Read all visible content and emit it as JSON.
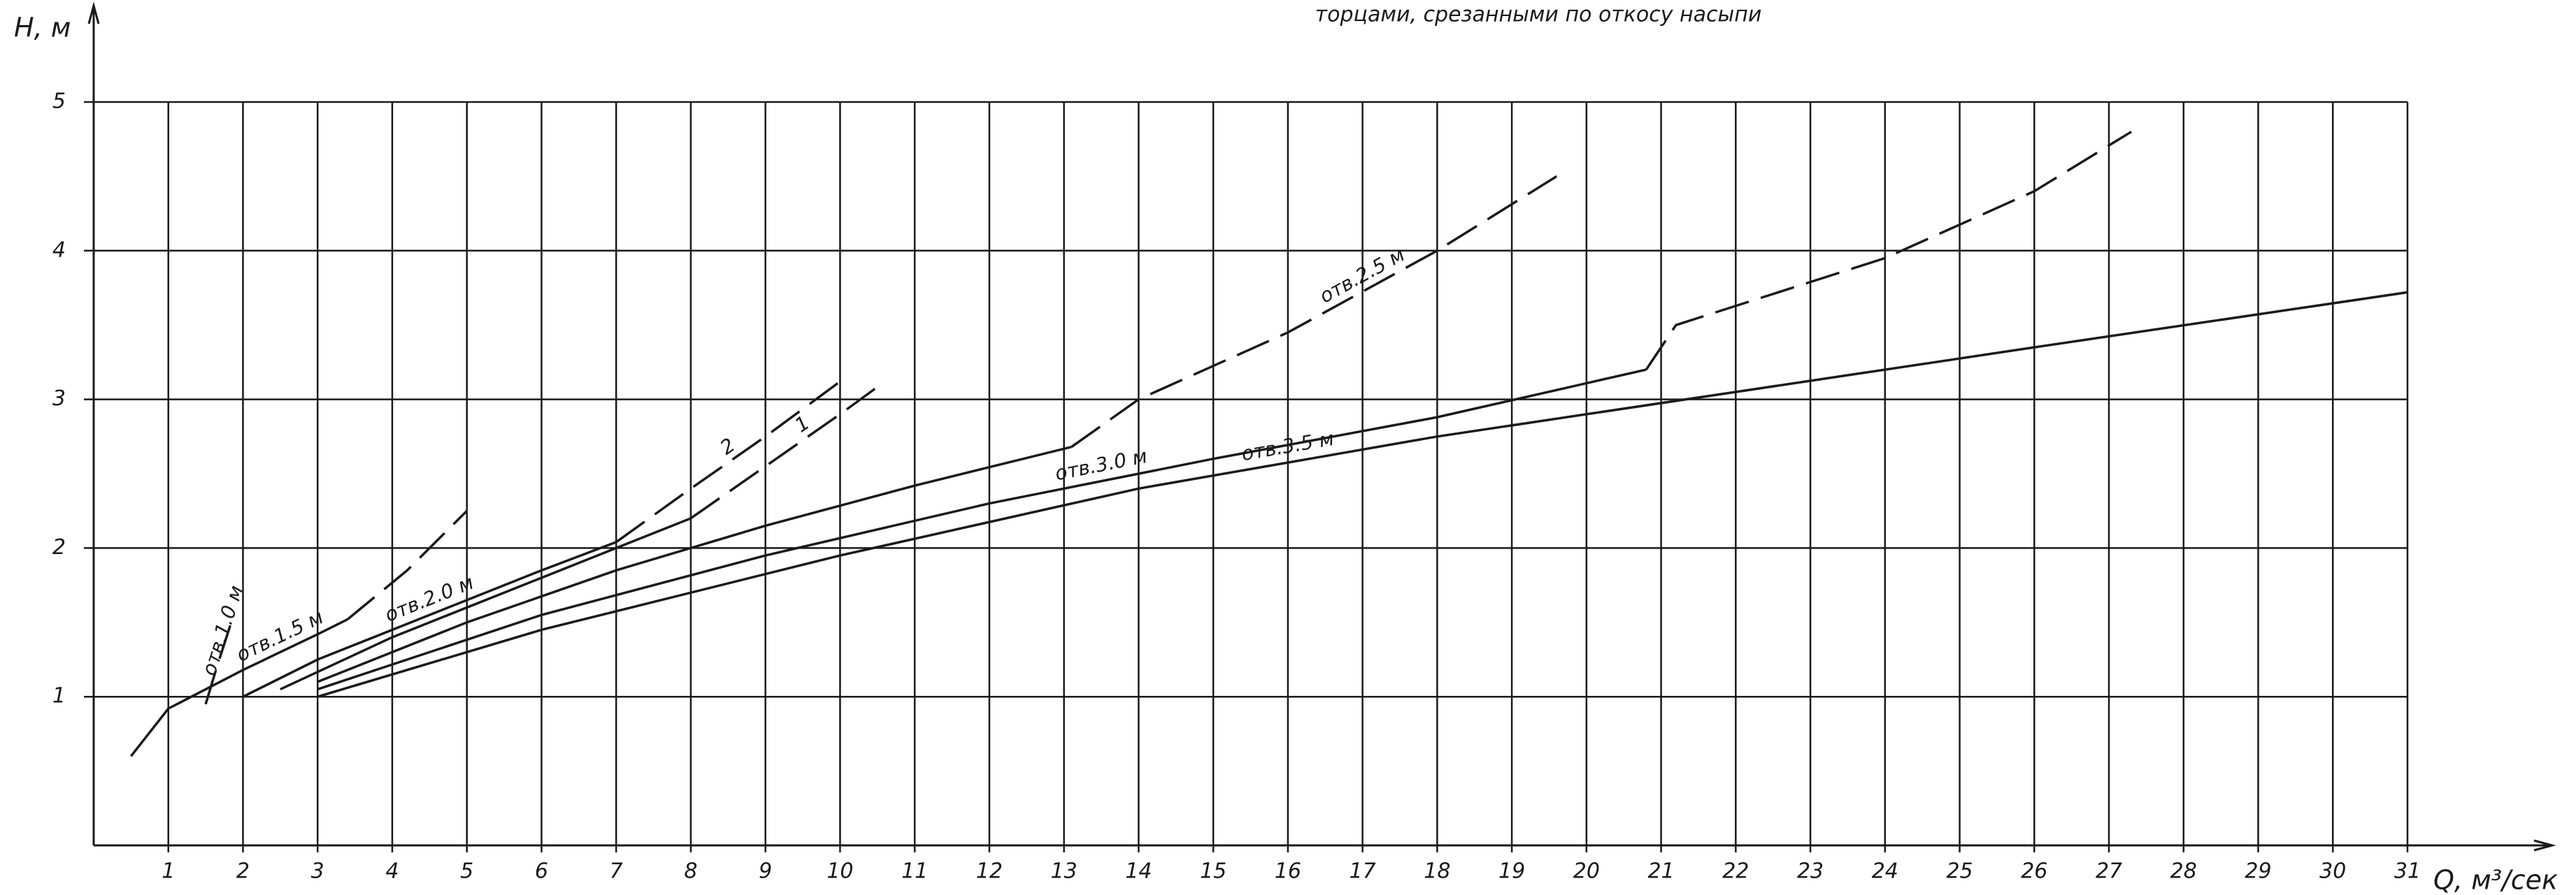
{
  "chart_data": {
    "type": "line",
    "title": "торцами, срезанными по откосу насыпи",
    "ylabel": "H, м",
    "xlabel": "Q, м³/сек",
    "xlim": [
      0,
      31
    ],
    "ylim": [
      0,
      5
    ],
    "xticks": [
      1,
      2,
      3,
      4,
      5,
      6,
      7,
      8,
      9,
      10,
      11,
      12,
      13,
      14,
      15,
      16,
      17,
      18,
      19,
      20,
      21,
      22,
      23,
      24,
      25,
      26,
      27,
      28,
      29,
      30,
      31
    ],
    "yticks": [
      1,
      2,
      3,
      4,
      5
    ],
    "grid": true,
    "color": "#1a1a1a",
    "series": [
      {
        "name": "отв.1.0 м",
        "dashed": true,
        "x": [
          1.5,
          1.65,
          1.83
        ],
        "values": [
          0.95,
          1.2,
          1.48
        ]
      },
      {
        "name": "отв.1.5 м",
        "dashed": false,
        "x": [
          0.5,
          1,
          2,
          3,
          3.4
        ],
        "values": [
          0.6,
          0.92,
          1.18,
          1.42,
          1.52
        ]
      },
      {
        "dashed": true,
        "x": [
          3.4,
          4.2,
          5.0
        ],
        "values": [
          1.52,
          1.85,
          2.25
        ]
      },
      {
        "name": "отв.2.0 м",
        "dashed": false,
        "x": [
          2,
          3,
          4,
          5,
          6,
          7
        ],
        "values": [
          1.0,
          1.25,
          1.45,
          1.65,
          1.85,
          2.04
        ]
      },
      {
        "name": "2",
        "dashed": true,
        "x": [
          7,
          8,
          9,
          10
        ],
        "values": [
          2.04,
          2.4,
          2.75,
          3.12
        ]
      },
      {
        "dashed": false,
        "x": [
          2.5,
          4,
          6,
          8
        ],
        "values": [
          1.05,
          1.4,
          1.8,
          2.2
        ]
      },
      {
        "name": "1",
        "dashed": true,
        "x": [
          8,
          9,
          10,
          10.6
        ],
        "values": [
          2.2,
          2.55,
          2.9,
          3.12
        ]
      },
      {
        "dashed": false,
        "x": [
          3,
          5,
          7,
          9,
          11,
          13.1
        ],
        "values": [
          1.1,
          1.5,
          1.85,
          2.15,
          2.42,
          2.68
        ]
      },
      {
        "name": "отв.2.5 м",
        "dashed": true,
        "x": [
          13.1,
          14,
          16,
          18,
          19.6
        ],
        "values": [
          2.68,
          3.0,
          3.45,
          4.0,
          4.5
        ]
      },
      {
        "name": "отв.3.0 м",
        "dashed": false,
        "x": [
          3,
          6,
          9,
          12,
          15,
          18,
          20.8
        ],
        "values": [
          1.05,
          1.55,
          1.95,
          2.3,
          2.6,
          2.88,
          3.2
        ]
      },
      {
        "dashed": true,
        "x": [
          20.8,
          21.2,
          24,
          26,
          27.3
        ],
        "values": [
          3.2,
          3.5,
          3.95,
          4.4,
          4.8
        ]
      },
      {
        "name": "отв.3.5 м",
        "dashed": false,
        "x": [
          3,
          6,
          10,
          14,
          18,
          22,
          26,
          31
        ],
        "values": [
          1.0,
          1.45,
          1.95,
          2.4,
          2.75,
          3.05,
          3.35,
          3.72
        ]
      }
    ]
  }
}
